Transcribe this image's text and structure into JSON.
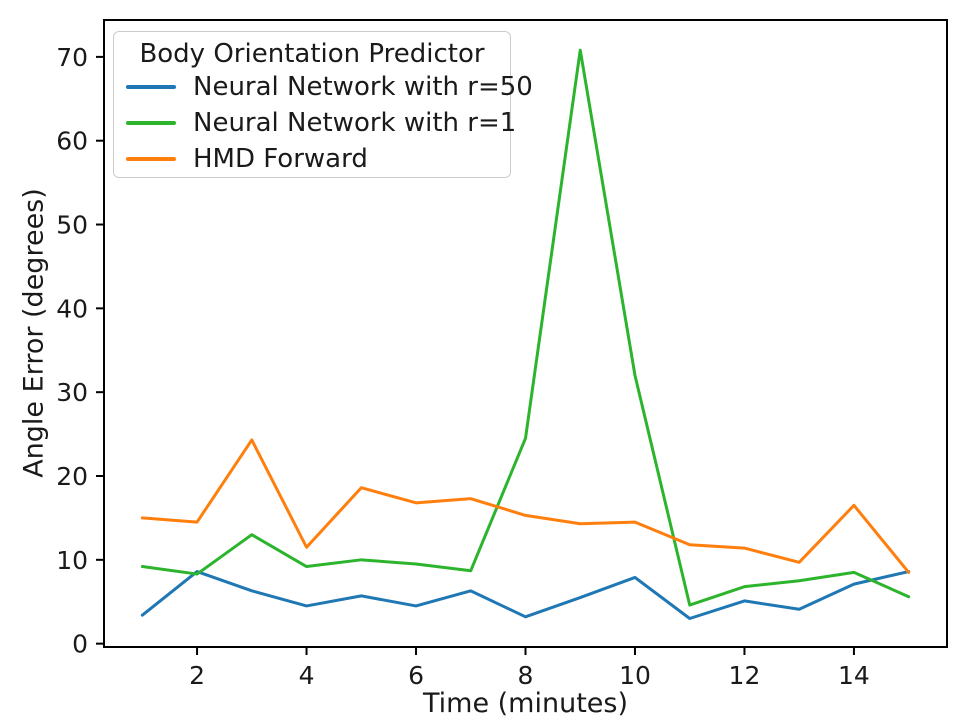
{
  "figure": {
    "background": "#ffffff",
    "text_color": "#1a1a1a",
    "spine_color": "#000000"
  },
  "chart_data": {
    "type": "line",
    "title": "",
    "xlabel": "Time (minutes)",
    "ylabel": "Angle Error (degrees)",
    "x": [
      1,
      2,
      3,
      4,
      5,
      6,
      7,
      8,
      9,
      10,
      11,
      12,
      13,
      14,
      15
    ],
    "series": [
      {
        "name": "Neural Network with r=50",
        "color": "#1f77b4",
        "values": [
          3.4,
          8.6,
          6.3,
          4.5,
          5.7,
          4.5,
          6.3,
          3.2,
          5.5,
          7.9,
          3.0,
          5.1,
          4.1,
          7.1,
          8.6
        ]
      },
      {
        "name": "Neural Network with r=1",
        "color": "#2db42d",
        "values": [
          9.2,
          8.3,
          13.0,
          9.2,
          10.0,
          9.5,
          8.7,
          24.5,
          70.8,
          32.0,
          4.6,
          6.8,
          7.5,
          8.5,
          5.6
        ]
      },
      {
        "name": "HMD Forward",
        "color": "#ff7f0e",
        "values": [
          15.0,
          14.5,
          24.3,
          11.5,
          18.6,
          16.8,
          17.3,
          15.3,
          14.3,
          14.5,
          11.8,
          11.4,
          9.7,
          16.5,
          8.5
        ]
      }
    ],
    "legend": {
      "title": "Body Orientation Predictor",
      "position": "upper left"
    },
    "xticks": [
      2,
      4,
      6,
      8,
      10,
      12,
      14
    ],
    "yticks": [
      0,
      10,
      20,
      30,
      40,
      50,
      60,
      70
    ],
    "xlim": [
      0.3,
      15.7
    ],
    "ylim": [
      -0.4,
      74.4
    ],
    "grid": false
  }
}
